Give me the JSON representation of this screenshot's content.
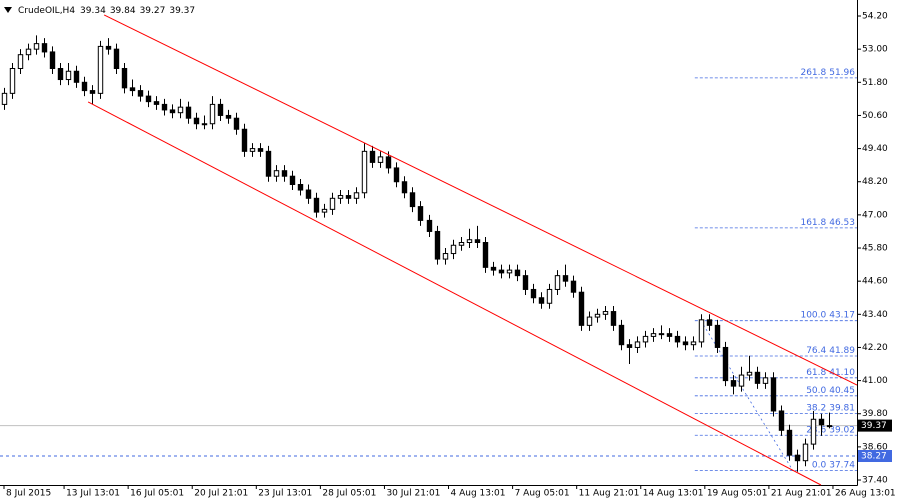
{
  "chart_data": {
    "type": "candlestick",
    "title": "CrudeOIL,H4",
    "x": [
      0,
      2,
      4,
      6,
      8,
      10,
      12,
      14,
      16,
      18,
      20,
      22,
      24,
      26,
      28,
      30,
      32,
      34,
      36,
      38,
      40,
      42,
      44,
      46,
      48,
      50,
      52,
      54,
      56,
      58,
      60,
      62,
      64,
      66,
      68,
      70,
      72,
      74,
      76,
      78,
      80,
      82,
      84,
      86,
      88,
      90,
      92,
      94,
      96,
      98,
      100,
      102,
      104,
      106,
      108,
      110,
      112,
      114,
      116,
      118,
      120,
      122,
      124,
      126,
      128,
      130,
      132,
      134,
      136,
      138,
      140,
      142,
      144,
      146,
      148,
      150,
      152,
      154,
      156,
      158,
      160,
      162,
      164,
      166,
      168,
      170,
      172,
      174,
      176,
      178,
      180,
      182,
      184,
      186,
      188,
      190,
      192,
      194,
      196,
      198,
      200,
      202,
      204,
      206
    ],
    "open": [
      51.0,
      51.4,
      52.3,
      52.8,
      53.0,
      53.2,
      52.9,
      52.3,
      51.9,
      52.2,
      51.8,
      51.5,
      51.4,
      53.1,
      53.0,
      52.3,
      51.6,
      51.5,
      51.3,
      51.1,
      51.0,
      50.8,
      50.7,
      50.9,
      50.5,
      50.3,
      50.3,
      51.0,
      50.6,
      50.5,
      50.1,
      49.3,
      49.4,
      49.3,
      48.4,
      48.6,
      48.4,
      48.1,
      47.9,
      47.6,
      47.1,
      47.2,
      47.6,
      47.7,
      47.6,
      47.8,
      49.3,
      48.9,
      49.1,
      48.7,
      48.2,
      47.8,
      47.3,
      46.8,
      46.4,
      45.4,
      45.6,
      45.9,
      46.0,
      46.1,
      46.0,
      45.1,
      45.0,
      44.9,
      45.0,
      44.8,
      44.3,
      44.0,
      43.8,
      44.3,
      44.8,
      44.6,
      44.2,
      43.0,
      43.3,
      43.4,
      43.5,
      43.0,
      42.3,
      42.2,
      42.4,
      42.6,
      42.7,
      42.7,
      42.6,
      42.4,
      42.3,
      42.4,
      43.2,
      43.0,
      42.2,
      41.0,
      40.8,
      41.2,
      41.3,
      40.9,
      41.1,
      39.9,
      39.2,
      38.3,
      38.1,
      38.7,
      39.6,
      39.34
    ],
    "high": [
      51.6,
      52.5,
      53.0,
      53.2,
      53.5,
      53.4,
      53.1,
      52.5,
      52.5,
      52.4,
      52.0,
      51.7,
      53.3,
      53.4,
      53.2,
      52.5,
      51.9,
      51.7,
      51.5,
      51.3,
      51.2,
      51.0,
      51.2,
      51.1,
      50.7,
      50.6,
      51.3,
      51.2,
      50.8,
      50.7,
      50.3,
      49.6,
      49.6,
      49.5,
      48.8,
      48.8,
      48.6,
      48.3,
      48.1,
      47.8,
      47.4,
      47.8,
      47.9,
      47.9,
      48.0,
      49.6,
      49.5,
      49.3,
      49.3,
      48.9,
      48.4,
      48.0,
      47.5,
      47.0,
      46.6,
      45.8,
      46.1,
      46.2,
      46.5,
      46.6,
      46.2,
      45.3,
      45.2,
      45.2,
      45.2,
      45.0,
      44.5,
      44.2,
      44.5,
      45.0,
      45.2,
      44.8,
      44.4,
      43.5,
      43.6,
      43.7,
      43.7,
      43.2,
      42.5,
      42.6,
      42.8,
      42.9,
      43.0,
      42.9,
      42.8,
      42.6,
      42.6,
      43.4,
      43.4,
      43.2,
      42.4,
      41.2,
      41.5,
      41.9,
      41.5,
      41.3,
      41.3,
      40.1,
      39.4,
      38.5,
      38.9,
      39.9,
      39.8,
      39.84
    ],
    "low": [
      50.8,
      51.2,
      52.1,
      52.6,
      52.8,
      52.7,
      52.1,
      51.7,
      51.7,
      51.6,
      51.3,
      51.0,
      51.2,
      52.8,
      52.1,
      51.4,
      51.3,
      51.1,
      50.9,
      50.8,
      50.6,
      50.5,
      50.5,
      50.3,
      50.1,
      50.1,
      50.1,
      50.4,
      50.3,
      49.9,
      49.1,
      49.1,
      49.1,
      48.2,
      48.2,
      48.2,
      47.9,
      47.7,
      47.4,
      46.9,
      46.9,
      47.0,
      47.4,
      47.4,
      47.4,
      47.6,
      48.7,
      48.7,
      48.5,
      48.0,
      47.6,
      47.1,
      46.6,
      46.2,
      45.2,
      45.2,
      45.4,
      45.7,
      45.8,
      45.8,
      44.9,
      44.8,
      44.7,
      44.7,
      44.6,
      44.1,
      43.8,
      43.6,
      43.6,
      44.1,
      44.4,
      44.0,
      42.8,
      42.8,
      43.1,
      43.2,
      42.8,
      42.1,
      41.6,
      42.0,
      42.2,
      42.4,
      42.5,
      42.4,
      42.2,
      42.1,
      42.1,
      42.2,
      42.8,
      42.0,
      40.8,
      40.5,
      40.6,
      41.0,
      40.7,
      40.7,
      39.7,
      39.0,
      38.1,
      37.7,
      37.9,
      38.5,
      39.0,
      39.27
    ],
    "close": [
      51.4,
      52.3,
      52.8,
      53.0,
      53.2,
      52.9,
      52.3,
      51.9,
      52.2,
      51.8,
      51.5,
      51.4,
      53.1,
      53.0,
      52.3,
      51.6,
      51.5,
      51.3,
      51.1,
      51.0,
      50.8,
      50.7,
      50.9,
      50.5,
      50.3,
      50.3,
      51.0,
      50.6,
      50.5,
      50.1,
      49.3,
      49.4,
      49.3,
      48.4,
      48.6,
      48.4,
      48.1,
      47.9,
      47.6,
      47.1,
      47.2,
      47.6,
      47.7,
      47.6,
      47.8,
      49.3,
      48.9,
      49.1,
      48.7,
      48.2,
      47.8,
      47.3,
      46.8,
      46.4,
      45.4,
      45.6,
      45.9,
      46.0,
      46.1,
      46.0,
      45.1,
      45.0,
      44.9,
      45.0,
      44.8,
      44.3,
      44.0,
      43.8,
      44.3,
      44.8,
      44.6,
      44.2,
      43.0,
      43.3,
      43.4,
      43.5,
      43.0,
      42.3,
      42.2,
      42.4,
      42.6,
      42.7,
      42.7,
      42.6,
      42.4,
      42.3,
      42.4,
      43.2,
      43.0,
      42.2,
      41.0,
      40.8,
      41.2,
      41.3,
      40.9,
      41.1,
      39.9,
      39.2,
      38.3,
      38.1,
      38.7,
      39.6,
      39.4,
      39.37
    ],
    "bull_color": "#ffffff",
    "bear_color": "#000000",
    "xlim": [
      -1,
      213
    ],
    "ylim": [
      37.22,
      54.78
    ],
    "xticks": [
      {
        "value": 0,
        "label": "8 Jul 2015"
      },
      {
        "value": 15,
        "label": "13 Jul 13:01"
      },
      {
        "value": 31,
        "label": "16 Jul 05:01"
      },
      {
        "value": 47,
        "label": "20 Jul 21:01"
      },
      {
        "value": 63,
        "label": "23 Jul 13:01"
      },
      {
        "value": 79,
        "label": "28 Jul 05:01"
      },
      {
        "value": 95,
        "label": "30 Jul 21:01"
      },
      {
        "value": 111,
        "label": "4 Aug 13:01"
      },
      {
        "value": 127,
        "label": "7 Aug 05:01"
      },
      {
        "value": 143,
        "label": "11 Aug 21:01"
      },
      {
        "value": 159,
        "label": "14 Aug 13:01"
      },
      {
        "value": 175,
        "label": "19 Aug 05:01"
      },
      {
        "value": 191,
        "label": "21 Aug 21:01"
      },
      {
        "value": 207,
        "label": "26 Aug 13:01"
      }
    ],
    "yticks": [
      {
        "value": 54.2,
        "label": "54.20"
      },
      {
        "value": 53,
        "label": "53.00"
      },
      {
        "value": 51.8,
        "label": "51.80"
      },
      {
        "value": 50.6,
        "label": "50.60"
      },
      {
        "value": 49.4,
        "label": "49.40"
      },
      {
        "value": 48.2,
        "label": "48.20"
      },
      {
        "value": 47,
        "label": "47.00"
      },
      {
        "value": 45.8,
        "label": "45.80"
      },
      {
        "value": 44.6,
        "label": "44.60"
      },
      {
        "value": 43.4,
        "label": "43.40"
      },
      {
        "value": 42.2,
        "label": "42.20"
      },
      {
        "value": 41,
        "label": "41.00"
      },
      {
        "value": 39.8,
        "label": "39.80"
      },
      {
        "value": 38.6,
        "label": "38.60"
      },
      {
        "value": 37.4,
        "label": "37.40"
      }
    ],
    "trendlines": [
      {
        "x": [
          25,
          213
        ],
        "y": [
          54.24,
          40.84
        ],
        "color": "#ff0000"
      },
      {
        "x": [
          21,
          204
        ],
        "y": [
          51.09,
          37.22
        ],
        "color": "#ff0000"
      }
    ],
    "fib": {
      "color": "#4169e1",
      "x": [
        174,
        197
      ],
      "levels": [
        {
          "ratio": 261.8,
          "price": 51.96
        },
        {
          "ratio": 161.8,
          "price": 46.53
        },
        {
          "ratio": {
            "value": 100,
            "label": "100.0"
          },
          "price": 43.17
        },
        {
          "ratio": 76.4,
          "price": 41.89
        },
        {
          "ratio": 61.8,
          "price": {
            "value": 41.1,
            "label": "41.10"
          }
        },
        {
          "ratio": {
            "value": 50,
            "label": "50.0"
          },
          "price": 40.45
        },
        {
          "ratio": 38.2,
          "price": 39.81
        },
        {
          "ratio": 23.6,
          "price": 39.02
        },
        {
          "ratio": {
            "value": 0,
            "label": "0.0"
          },
          "price": 37.74
        }
      ]
    },
    "hline": {
      "value": 38.27,
      "color": "#4169e1"
    },
    "current_price_color": "#c0c0c0"
  }
}
